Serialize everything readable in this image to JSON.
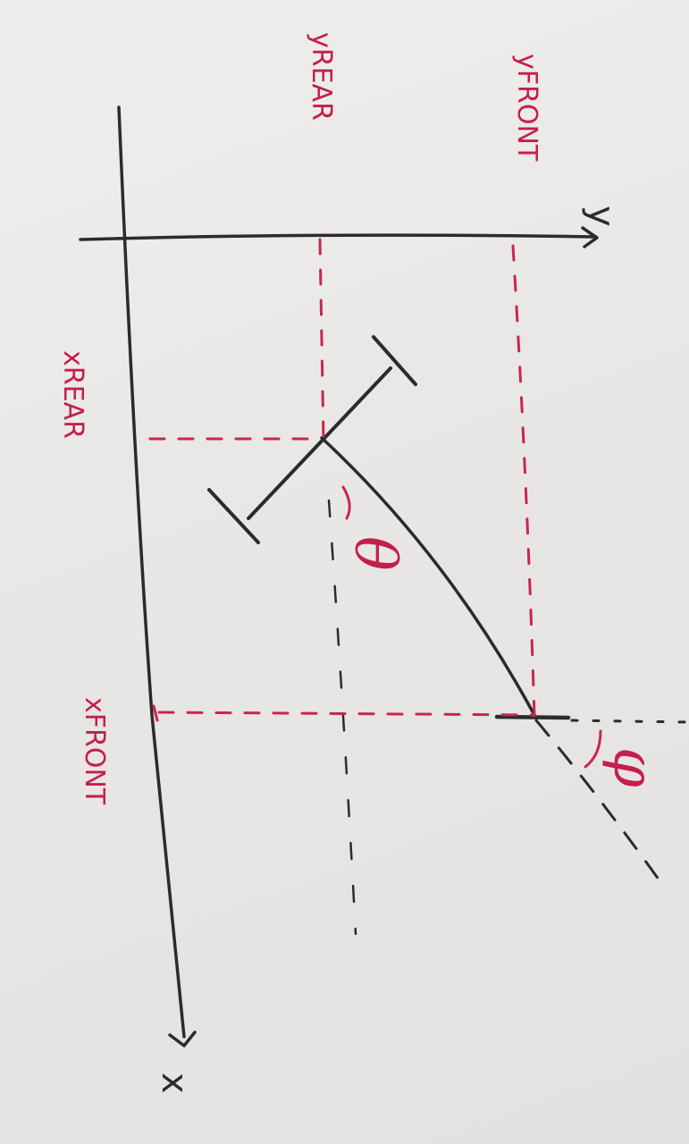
{
  "labels": {
    "y_axis": "y",
    "x_axis": "x",
    "y_front": "yFRONT",
    "y_rear": "yREAR",
    "x_rear": "xREAR",
    "x_front": "xFRONT",
    "theta": "θ",
    "phi": "φ"
  }
}
